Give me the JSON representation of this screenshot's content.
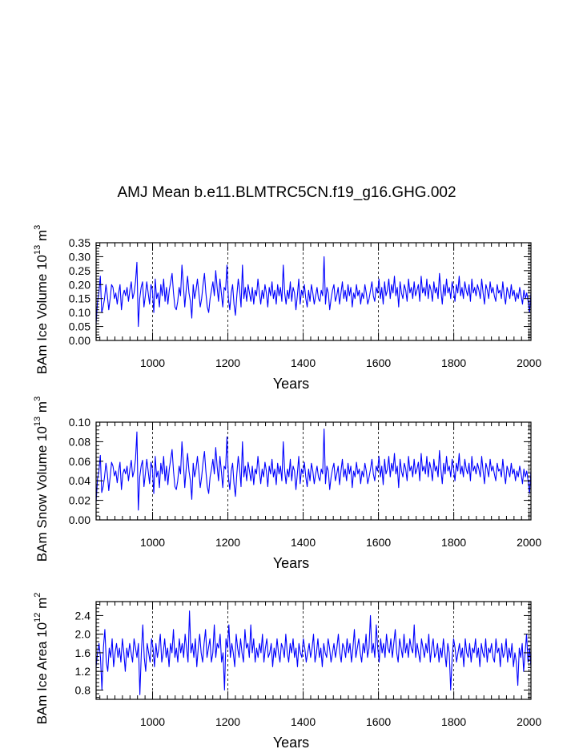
{
  "page_title": "AMJ Mean b.e11.BLMTRC5CN.f19_g16.GHG.002",
  "series_color": "#0000ff",
  "chart_data": [
    {
      "type": "line",
      "id": "ice-volume",
      "ylabel_main": "BAm Ice Volume 10",
      "ylabel_exp": "13",
      "ylabel_unit": " m",
      "ylabel_unit_exp": "3",
      "xlabel": "Years",
      "xlim": [
        850,
        2005
      ],
      "ylim": [
        0.0,
        0.35
      ],
      "xticks": [
        1000,
        1200,
        1400,
        1600,
        1800,
        2000
      ],
      "xtick_labels": [
        "1000",
        "1200",
        "1400",
        "1600",
        "1800",
        "2000"
      ],
      "yticks": [
        0.0,
        0.05,
        0.1,
        0.15,
        0.2,
        0.25,
        0.3,
        0.35
      ],
      "ytick_labels": [
        "0.00",
        "0.05",
        "0.10",
        "0.15",
        "0.20",
        "0.25",
        "0.30",
        "0.35"
      ],
      "x_gridlines": [
        1000,
        1200,
        1400,
        1600,
        1800,
        2000
      ],
      "series": [
        {
          "name": "BAm Ice Volume",
          "x_start": 850,
          "x_end": 2005,
          "values": [
            0.06,
            0.14,
            0.17,
            0.23,
            0.1,
            0.12,
            0.15,
            0.2,
            0.16,
            0.11,
            0.15,
            0.2,
            0.19,
            0.15,
            0.17,
            0.13,
            0.17,
            0.2,
            0.11,
            0.16,
            0.18,
            0.16,
            0.19,
            0.14,
            0.18,
            0.21,
            0.15,
            0.17,
            0.21,
            0.28,
            0.05,
            0.15,
            0.19,
            0.21,
            0.12,
            0.16,
            0.21,
            0.17,
            0.13,
            0.2,
            0.18,
            0.1,
            0.22,
            0.15,
            0.17,
            0.12,
            0.2,
            0.16,
            0.22,
            0.14,
            0.19,
            0.13,
            0.18,
            0.21,
            0.24,
            0.17,
            0.12,
            0.11,
            0.14,
            0.19,
            0.16,
            0.27,
            0.2,
            0.12,
            0.18,
            0.23,
            0.17,
            0.14,
            0.08,
            0.2,
            0.15,
            0.18,
            0.22,
            0.17,
            0.12,
            0.15,
            0.2,
            0.24,
            0.17,
            0.12,
            0.1,
            0.15,
            0.18,
            0.21,
            0.16,
            0.25,
            0.19,
            0.14,
            0.22,
            0.17,
            0.12,
            0.19,
            0.18,
            0.27,
            0.15,
            0.11,
            0.17,
            0.2,
            0.13,
            0.09,
            0.16,
            0.22,
            0.18,
            0.12,
            0.27,
            0.15,
            0.19,
            0.14,
            0.2,
            0.17,
            0.14,
            0.19,
            0.13,
            0.18,
            0.16,
            0.22,
            0.17,
            0.13,
            0.18,
            0.15,
            0.2,
            0.17,
            0.12,
            0.19,
            0.16,
            0.21,
            0.15,
            0.18,
            0.13,
            0.2,
            0.16,
            0.19,
            0.14,
            0.27,
            0.17,
            0.13,
            0.18,
            0.15,
            0.21,
            0.14,
            0.19,
            0.17,
            0.11,
            0.16,
            0.22,
            0.13,
            0.18,
            0.16,
            0.2,
            0.15,
            0.12,
            0.18,
            0.14,
            0.2,
            0.17,
            0.13,
            0.16,
            0.19,
            0.15,
            0.14,
            0.18,
            0.16,
            0.3,
            0.13,
            0.19,
            0.17,
            0.11,
            0.15,
            0.18,
            0.2,
            0.14,
            0.16,
            0.19,
            0.13,
            0.17,
            0.21,
            0.15,
            0.18,
            0.14,
            0.2,
            0.16,
            0.19,
            0.12,
            0.17,
            0.15,
            0.2,
            0.16,
            0.18,
            0.13,
            0.17,
            0.15,
            0.2,
            0.17,
            0.13,
            0.15,
            0.18,
            0.21,
            0.16,
            0.14,
            0.19,
            0.17,
            0.22,
            0.15,
            0.19,
            0.13,
            0.21,
            0.16,
            0.18,
            0.22,
            0.15,
            0.2,
            0.17,
            0.23,
            0.16,
            0.19,
            0.12,
            0.21,
            0.17,
            0.15,
            0.2,
            0.18,
            0.14,
            0.22,
            0.17,
            0.19,
            0.15,
            0.21,
            0.16,
            0.18,
            0.2,
            0.14,
            0.23,
            0.17,
            0.19,
            0.16,
            0.22,
            0.15,
            0.2,
            0.18,
            0.14,
            0.21,
            0.17,
            0.19,
            0.15,
            0.24,
            0.18,
            0.13,
            0.2,
            0.16,
            0.22,
            0.17,
            0.19,
            0.15,
            0.21,
            0.18,
            0.14,
            0.2,
            0.17,
            0.23,
            0.16,
            0.19,
            0.15,
            0.21,
            0.18,
            0.16,
            0.2,
            0.14,
            0.22,
            0.17,
            0.19,
            0.16,
            0.2,
            0.18,
            0.15,
            0.22,
            0.17,
            0.13,
            0.2,
            0.18,
            0.15,
            0.21,
            0.17,
            0.19,
            0.16,
            0.14,
            0.2,
            0.17,
            0.18,
            0.15,
            0.21,
            0.16,
            0.13,
            0.19,
            0.17,
            0.15,
            0.2,
            0.16,
            0.18,
            0.14,
            0.17,
            0.15,
            0.19,
            0.16,
            0.13,
            0.18,
            0.15,
            0.17,
            0.14,
            0.1,
            0.17
          ]
        }
      ]
    },
    {
      "type": "line",
      "id": "snow-volume",
      "ylabel_main": "BAm Snow Volume 10",
      "ylabel_exp": "13",
      "ylabel_unit": " m",
      "ylabel_unit_exp": "3",
      "xlabel": "Years",
      "xlim": [
        850,
        2005
      ],
      "ylim": [
        0.0,
        0.1
      ],
      "xticks": [
        1000,
        1200,
        1400,
        1600,
        1800,
        2000
      ],
      "xtick_labels": [
        "1000",
        "1200",
        "1400",
        "1600",
        "1800",
        "2000"
      ],
      "yticks": [
        0.0,
        0.02,
        0.04,
        0.06,
        0.08,
        0.1
      ],
      "ytick_labels": [
        "0.00",
        "0.02",
        "0.04",
        "0.06",
        "0.08",
        "0.10"
      ],
      "x_gridlines": [
        1000,
        1200,
        1400,
        1600,
        1800,
        2000
      ],
      "series": [
        {
          "name": "BAm Snow Volume",
          "x_start": 850,
          "x_end": 2005,
          "values": [
            0.018,
            0.042,
            0.05,
            0.066,
            0.028,
            0.034,
            0.044,
            0.058,
            0.047,
            0.03,
            0.044,
            0.059,
            0.055,
            0.045,
            0.05,
            0.038,
            0.05,
            0.059,
            0.031,
            0.047,
            0.052,
            0.047,
            0.055,
            0.04,
            0.052,
            0.061,
            0.044,
            0.05,
            0.062,
            0.09,
            0.01,
            0.044,
            0.055,
            0.061,
            0.034,
            0.047,
            0.062,
            0.05,
            0.037,
            0.059,
            0.052,
            0.027,
            0.065,
            0.044,
            0.05,
            0.033,
            0.058,
            0.047,
            0.065,
            0.04,
            0.055,
            0.036,
            0.052,
            0.062,
            0.072,
            0.05,
            0.034,
            0.031,
            0.04,
            0.055,
            0.047,
            0.08,
            0.059,
            0.033,
            0.052,
            0.068,
            0.05,
            0.04,
            0.021,
            0.058,
            0.044,
            0.052,
            0.065,
            0.05,
            0.033,
            0.044,
            0.059,
            0.07,
            0.05,
            0.034,
            0.027,
            0.044,
            0.052,
            0.062,
            0.047,
            0.074,
            0.055,
            0.04,
            0.065,
            0.05,
            0.033,
            0.055,
            0.052,
            0.085,
            0.044,
            0.031,
            0.05,
            0.058,
            0.037,
            0.024,
            0.047,
            0.065,
            0.052,
            0.034,
            0.08,
            0.044,
            0.055,
            0.04,
            0.059,
            0.05,
            0.04,
            0.055,
            0.036,
            0.052,
            0.047,
            0.065,
            0.05,
            0.037,
            0.052,
            0.044,
            0.059,
            0.05,
            0.034,
            0.055,
            0.047,
            0.062,
            0.044,
            0.052,
            0.036,
            0.058,
            0.047,
            0.055,
            0.04,
            0.08,
            0.05,
            0.037,
            0.052,
            0.044,
            0.062,
            0.04,
            0.055,
            0.05,
            0.031,
            0.047,
            0.065,
            0.037,
            0.052,
            0.047,
            0.059,
            0.044,
            0.034,
            0.052,
            0.04,
            0.058,
            0.05,
            0.037,
            0.047,
            0.055,
            0.044,
            0.04,
            0.052,
            0.047,
            0.093,
            0.037,
            0.055,
            0.05,
            0.031,
            0.044,
            0.052,
            0.058,
            0.04,
            0.047,
            0.055,
            0.036,
            0.05,
            0.062,
            0.044,
            0.052,
            0.04,
            0.058,
            0.047,
            0.055,
            0.033,
            0.05,
            0.044,
            0.059,
            0.047,
            0.052,
            0.037,
            0.05,
            0.044,
            0.058,
            0.05,
            0.037,
            0.044,
            0.052,
            0.062,
            0.047,
            0.04,
            0.055,
            0.05,
            0.065,
            0.044,
            0.055,
            0.036,
            0.062,
            0.047,
            0.052,
            0.065,
            0.044,
            0.058,
            0.05,
            0.068,
            0.047,
            0.055,
            0.033,
            0.062,
            0.05,
            0.044,
            0.058,
            0.052,
            0.04,
            0.065,
            0.05,
            0.055,
            0.044,
            0.062,
            0.047,
            0.052,
            0.059,
            0.04,
            0.068,
            0.05,
            0.055,
            0.047,
            0.065,
            0.044,
            0.059,
            0.052,
            0.04,
            0.062,
            0.05,
            0.055,
            0.044,
            0.071,
            0.052,
            0.037,
            0.058,
            0.047,
            0.065,
            0.05,
            0.055,
            0.044,
            0.062,
            0.052,
            0.04,
            0.058,
            0.05,
            0.068,
            0.047,
            0.055,
            0.044,
            0.062,
            0.052,
            0.047,
            0.058,
            0.04,
            0.065,
            0.05,
            0.055,
            0.047,
            0.058,
            0.052,
            0.044,
            0.065,
            0.05,
            0.037,
            0.058,
            0.052,
            0.044,
            0.062,
            0.05,
            0.055,
            0.047,
            0.04,
            0.058,
            0.05,
            0.052,
            0.044,
            0.062,
            0.047,
            0.037,
            0.055,
            0.05,
            0.044,
            0.058,
            0.047,
            0.052,
            0.04,
            0.05,
            0.044,
            0.055,
            0.047,
            0.037,
            0.052,
            0.044,
            0.05,
            0.04,
            0.027,
            0.05
          ]
        }
      ]
    },
    {
      "type": "line",
      "id": "ice-area",
      "ylabel_main": "BAm Ice Area 10",
      "ylabel_exp": "12",
      "ylabel_unit": " m",
      "ylabel_unit_exp": "2",
      "xlabel": "Years",
      "xlim": [
        850,
        2005
      ],
      "ylim": [
        0.6,
        2.7
      ],
      "xticks": [
        1000,
        1200,
        1400,
        1600,
        1800,
        2000
      ],
      "xtick_labels": [
        "1000",
        "1200",
        "1400",
        "1600",
        "1800",
        "2000"
      ],
      "yticks": [
        0.8,
        1.2,
        1.6,
        2.0,
        2.4
      ],
      "ytick_labels": [
        "0.8",
        "1.2",
        "1.6",
        "2.0",
        "2.4"
      ],
      "x_gridlines": [
        1000,
        1200,
        1400,
        1600,
        1800,
        2000
      ],
      "series": [
        {
          "name": "BAm Ice Area",
          "x_start": 850,
          "x_end": 2005,
          "values": [
            1.3,
            1.6,
            1.8,
            1.5,
            0.8,
            1.7,
            2.1,
            1.4,
            1.2,
            1.7,
            1.5,
            1.9,
            1.3,
            1.6,
            1.8,
            1.5,
            1.7,
            1.4,
            1.9,
            1.6,
            1.2,
            1.7,
            1.5,
            1.8,
            1.6,
            1.4,
            1.9,
            1.7,
            1.5,
            1.8,
            0.7,
            1.6,
            2.2,
            1.5,
            1.2,
            1.8,
            1.6,
            1.4,
            1.9,
            1.7,
            1.3,
            1.8,
            1.5,
            1.7,
            2.0,
            1.4,
            1.6,
            1.9,
            1.5,
            1.7,
            1.3,
            1.8,
            1.6,
            2.1,
            1.5,
            1.7,
            1.4,
            1.9,
            1.6,
            1.8,
            1.5,
            2.0,
            1.7,
            1.4,
            2.5,
            1.6,
            1.8,
            1.5,
            1.9,
            1.3,
            1.7,
            2.0,
            1.6,
            1.4,
            1.8,
            2.1,
            1.5,
            1.7,
            1.9,
            1.4,
            1.6,
            2.2,
            1.5,
            1.8,
            1.7,
            2.0,
            1.4,
            1.6,
            0.8,
            1.9,
            1.7,
            2.2,
            1.5,
            1.8,
            1.6,
            1.3,
            2.0,
            1.7,
            1.5,
            1.9,
            1.6,
            1.4,
            2.1,
            1.7,
            1.8,
            1.5,
            2.2,
            1.6,
            1.9,
            1.4,
            1.7,
            1.5,
            1.8,
            1.6,
            2.0,
            1.4,
            1.7,
            1.9,
            1.5,
            1.6,
            1.8,
            1.3,
            1.7,
            1.5,
            1.9,
            1.6,
            1.4,
            1.8,
            1.7,
            1.5,
            2.0,
            1.6,
            1.4,
            1.8,
            1.6,
            1.9,
            1.5,
            1.7,
            1.3,
            1.8,
            1.6,
            1.5,
            1.9,
            1.7,
            1.4,
            1.6,
            1.8,
            1.5,
            1.7,
            2.0,
            1.4,
            1.6,
            1.9,
            1.5,
            1.7,
            1.3,
            1.8,
            1.6,
            1.5,
            1.9,
            1.7,
            1.4,
            1.6,
            1.8,
            1.5,
            1.7,
            2.0,
            1.6,
            1.4,
            1.8,
            1.7,
            1.5,
            1.9,
            1.6,
            1.8,
            1.4,
            1.7,
            2.1,
            1.5,
            1.7,
            1.9,
            1.6,
            1.4,
            1.8,
            1.6,
            2.0,
            1.5,
            1.7,
            2.4,
            1.6,
            1.8,
            1.5,
            2.2,
            1.7,
            1.4,
            1.9,
            1.6,
            1.8,
            1.5,
            2.0,
            1.7,
            1.6,
            1.9,
            1.5,
            1.8,
            2.1,
            1.6,
            1.4,
            1.9,
            1.7,
            1.5,
            2.0,
            1.6,
            1.8,
            1.5,
            1.9,
            1.7,
            1.6,
            2.2,
            1.5,
            1.8,
            1.6,
            1.4,
            1.9,
            1.7,
            1.5,
            1.8,
            1.6,
            2.0,
            1.4,
            1.7,
            1.9,
            1.5,
            1.6,
            1.8,
            1.4,
            1.7,
            1.5,
            1.9,
            1.6,
            1.3,
            1.8,
            1.6,
            0.8,
            1.5,
            1.9,
            1.7,
            1.4,
            1.6,
            1.8,
            1.5,
            1.7,
            1.3,
            1.9,
            1.6,
            1.5,
            1.8,
            1.4,
            1.7,
            1.6,
            1.9,
            1.5,
            1.7,
            1.3,
            1.8,
            1.6,
            1.5,
            1.9,
            1.4,
            1.7,
            1.6,
            1.8,
            1.5,
            1.4,
            1.9,
            1.6,
            1.7,
            1.3,
            1.8,
            1.5,
            1.6,
            1.9,
            1.4,
            1.7,
            1.5,
            1.8,
            1.3,
            1.6,
            1.4,
            0.9,
            1.7,
            1.5,
            1.8,
            1.2,
            1.6,
            2.0,
            1.4,
            1.7,
            1.3
          ]
        }
      ]
    }
  ]
}
